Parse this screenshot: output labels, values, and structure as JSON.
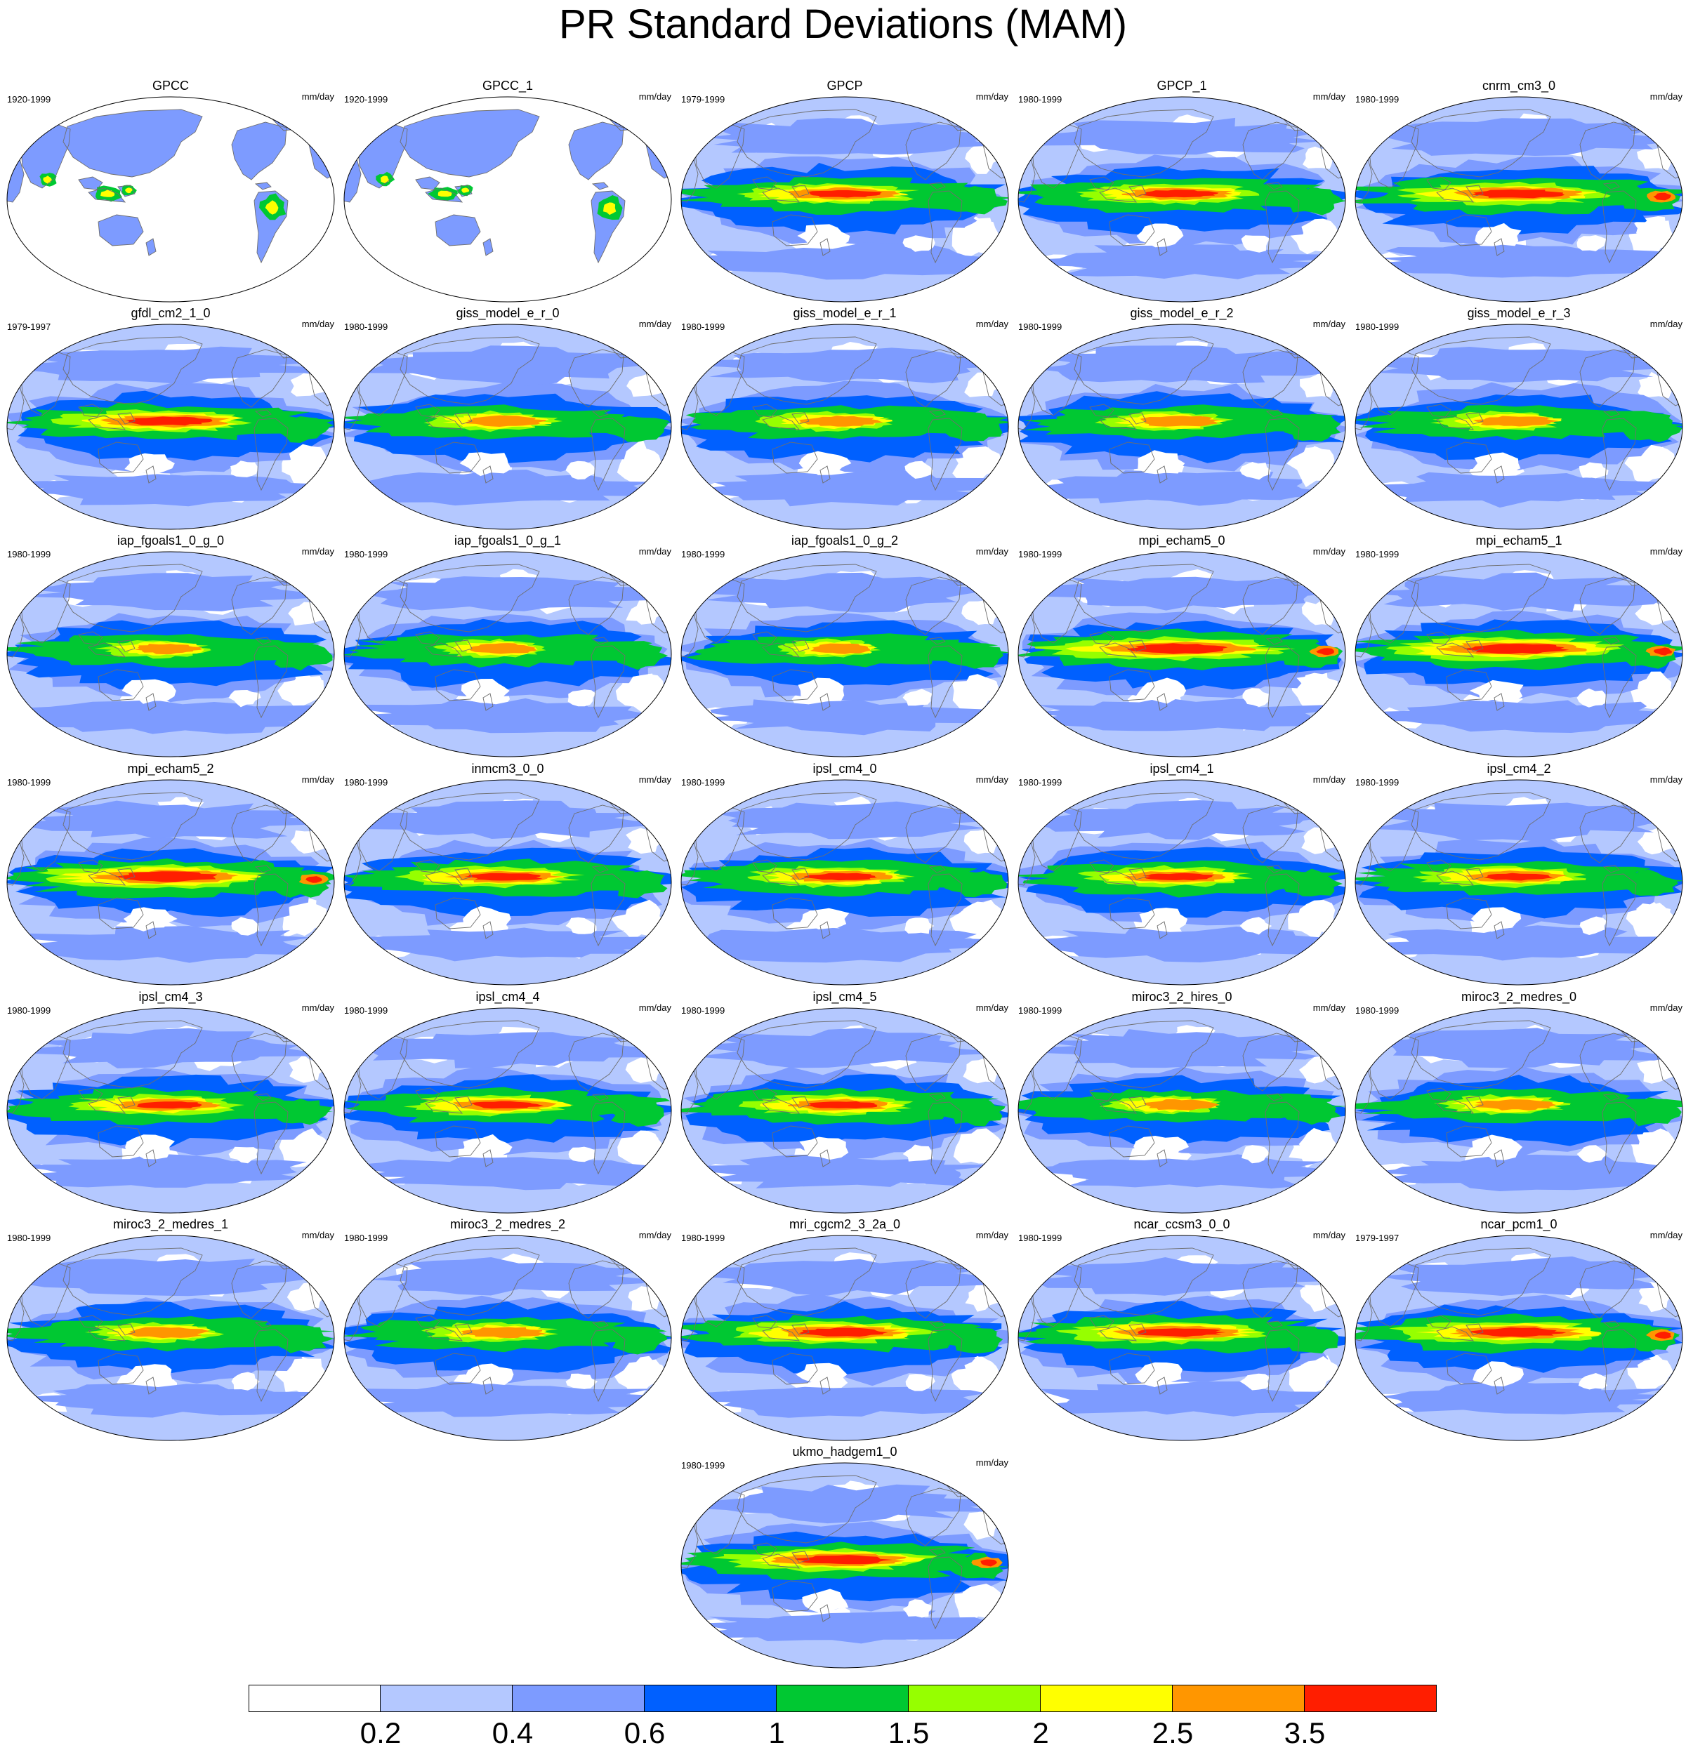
{
  "title": "PR Standard Deviations (MAM)",
  "units": "mm/day",
  "panels": [
    {
      "name": "GPCC",
      "years": "1920-1999",
      "type": "gpcc"
    },
    {
      "name": "GPCC_1",
      "years": "1920-1999",
      "type": "gpcc"
    },
    {
      "name": "GPCP",
      "years": "1979-1999",
      "type": "model",
      "intensity": 0.75
    },
    {
      "name": "GPCP_1",
      "years": "1980-1999",
      "type": "model",
      "intensity": 0.75
    },
    {
      "name": "cnrm_cm3_0",
      "years": "1980-1999",
      "type": "model",
      "intensity": 0.9
    },
    {
      "name": "gfdl_cm2_1_0",
      "years": "1979-1997",
      "type": "model",
      "intensity": 0.85
    },
    {
      "name": "giss_model_e_r_0",
      "years": "1980-1999",
      "type": "model",
      "intensity": 0.55
    },
    {
      "name": "giss_model_e_r_1",
      "years": "1980-1999",
      "type": "model",
      "intensity": 0.55
    },
    {
      "name": "giss_model_e_r_2",
      "years": "1980-1999",
      "type": "model",
      "intensity": 0.55
    },
    {
      "name": "giss_model_e_r_3",
      "years": "1980-1999",
      "type": "model",
      "intensity": 0.55
    },
    {
      "name": "iap_fgoals1_0_g_0",
      "years": "1980-1999",
      "type": "model",
      "intensity": 0.45
    },
    {
      "name": "iap_fgoals1_0_g_1",
      "years": "1980-1999",
      "type": "model",
      "intensity": 0.45
    },
    {
      "name": "iap_fgoals1_0_g_2",
      "years": "1980-1999",
      "type": "model",
      "intensity": 0.45
    },
    {
      "name": "mpi_echam5_0",
      "years": "1980-1999",
      "type": "model",
      "intensity": 1.0
    },
    {
      "name": "mpi_echam5_1",
      "years": "1980-1999",
      "type": "model",
      "intensity": 1.0
    },
    {
      "name": "mpi_echam5_2",
      "years": "1980-1999",
      "type": "model",
      "intensity": 1.0
    },
    {
      "name": "inmcm3_0_0",
      "years": "1980-1999",
      "type": "model",
      "intensity": 0.75
    },
    {
      "name": "ipsl_cm4_0",
      "years": "1980-1999",
      "type": "model",
      "intensity": 0.7
    },
    {
      "name": "ipsl_cm4_1",
      "years": "1980-1999",
      "type": "model",
      "intensity": 0.7
    },
    {
      "name": "ipsl_cm4_2",
      "years": "1980-1999",
      "type": "model",
      "intensity": 0.7
    },
    {
      "name": "ipsl_cm4_3",
      "years": "1980-1999",
      "type": "model",
      "intensity": 0.7
    },
    {
      "name": "ipsl_cm4_4",
      "years": "1980-1999",
      "type": "model",
      "intensity": 0.7
    },
    {
      "name": "ipsl_cm4_5",
      "years": "1980-1999",
      "type": "model",
      "intensity": 0.7
    },
    {
      "name": "miroc3_2_hires_0",
      "years": "1980-1999",
      "type": "model",
      "intensity": 0.5
    },
    {
      "name": "miroc3_2_medres_0",
      "years": "1980-1999",
      "type": "model",
      "intensity": 0.55
    },
    {
      "name": "miroc3_2_medres_1",
      "years": "1980-1999",
      "type": "model",
      "intensity": 0.55
    },
    {
      "name": "miroc3_2_medres_2",
      "years": "1980-1999",
      "type": "model",
      "intensity": 0.55
    },
    {
      "name": "mri_cgcm2_3_2a_0",
      "years": "1980-1999",
      "type": "model",
      "intensity": 0.85
    },
    {
      "name": "ncar_ccsm3_0_0",
      "years": "1980-1999",
      "type": "model",
      "intensity": 0.85
    },
    {
      "name": "ncar_pcm1_0",
      "years": "1979-1997",
      "type": "model",
      "intensity": 0.9
    },
    {
      "name": "ukmo_hadgem1_0",
      "years": "1980-1999",
      "type": "model",
      "intensity": 0.9
    }
  ],
  "colorbar": {
    "colors": [
      "#ffffff",
      "#b4c8ff",
      "#7d9bff",
      "#0060ff",
      "#00c832",
      "#96ff00",
      "#ffff00",
      "#ff9600",
      "#ff1e00"
    ],
    "labels": [
      "0.2",
      "0.4",
      "0.6",
      "1",
      "1.5",
      "2",
      "2.5",
      "3.5"
    ]
  }
}
